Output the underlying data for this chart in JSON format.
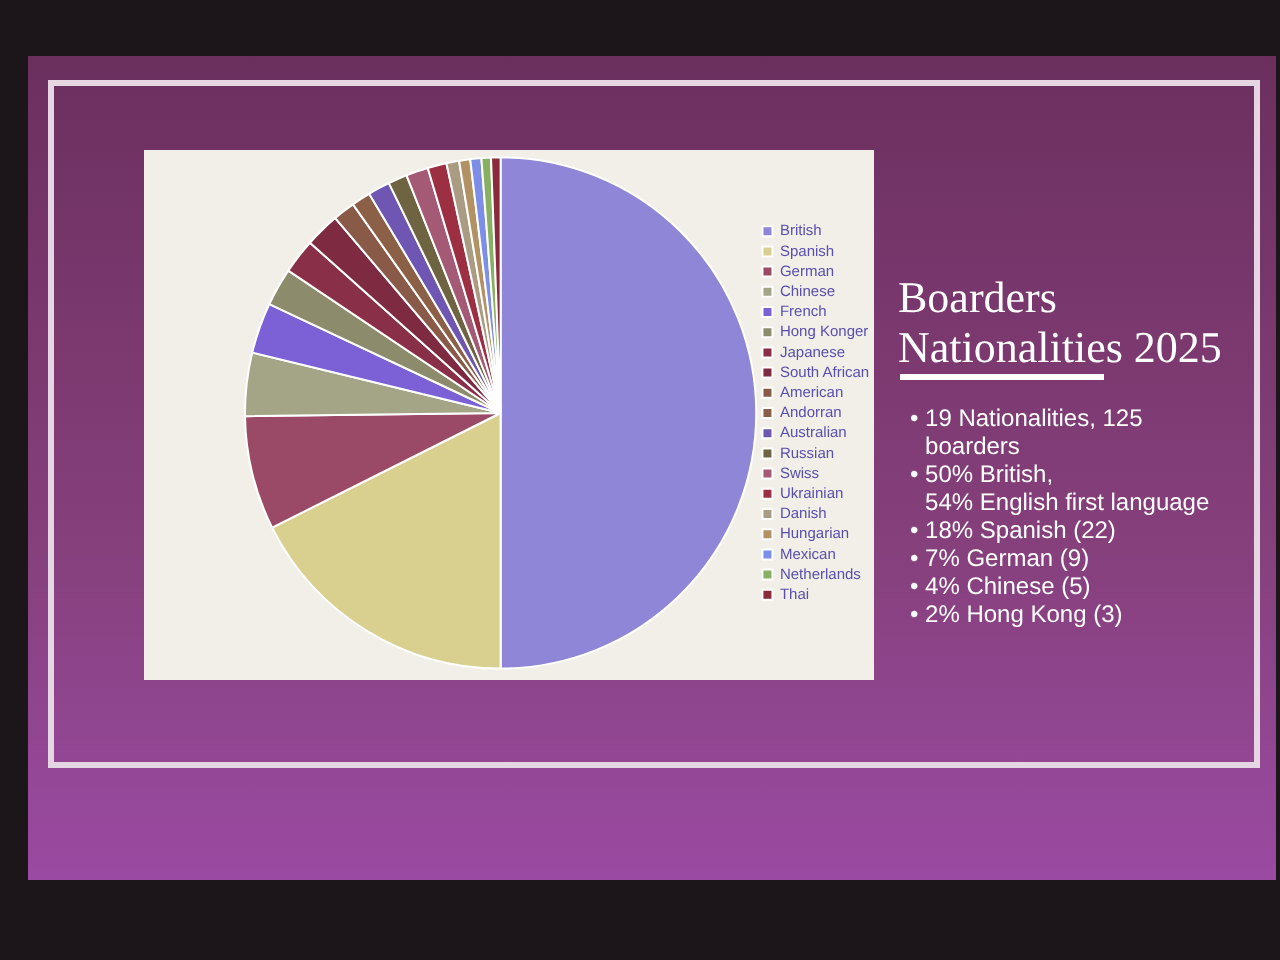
{
  "chart_data": {
    "type": "pie",
    "title": "Boarders Nationalities 2025",
    "categories": [
      "British",
      "Spanish",
      "German",
      "Chinese",
      "French",
      "Hong Konger",
      "Japanese",
      "South African",
      "American",
      "Andorran",
      "Australian",
      "Russian",
      "Swiss",
      "Ukrainian",
      "Danish",
      "Hungarian",
      "Mexican",
      "Netherlands",
      "Thai"
    ],
    "values": [
      50,
      17.6,
      7.2,
      4,
      3.2,
      2.4,
      2.2,
      2.2,
      1.4,
      1.2,
      1.4,
      1.2,
      1.4,
      1.2,
      0.8,
      0.7,
      0.7,
      0.6,
      0.6
    ],
    "colors": [
      "#8f86d8",
      "#d9d08f",
      "#9a4a66",
      "#a4a486",
      "#7b60d6",
      "#8c8c6c",
      "#8a2f48",
      "#7e2b42",
      "#8a5a48",
      "#8c6046",
      "#6f56b2",
      "#6e6442",
      "#a45a74",
      "#9c2f42",
      "#aa9c82",
      "#b29262",
      "#7d8ee8",
      "#88b062",
      "#8a2a3a"
    ],
    "legend": "right",
    "annotations": [
      "• 19 Nationalities, 125 boarders",
      "• 50% British,\n54% English first language",
      "• 18% Spanish (22)",
      "• 7% German (9)",
      "• 4% Chinese (5)",
      "• 2% Hong Kong (3)"
    ]
  }
}
